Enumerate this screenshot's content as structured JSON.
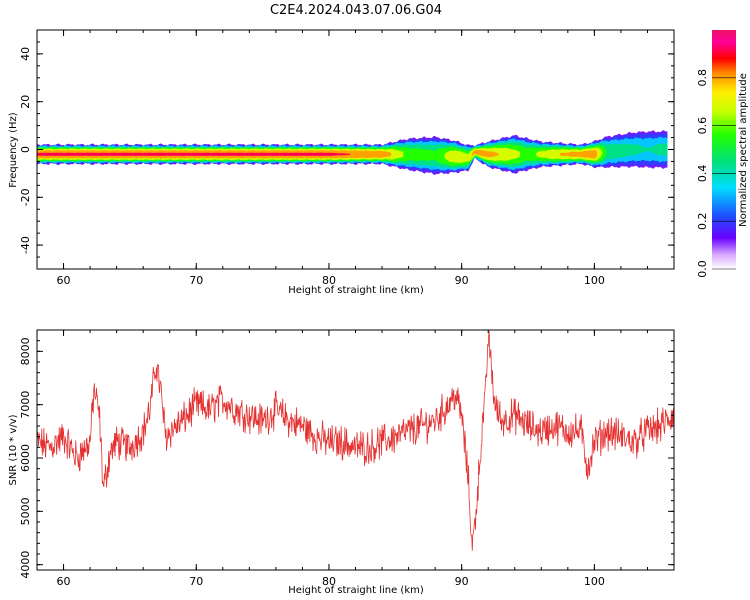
{
  "figure": {
    "title": "C2E4.2024.043.07.06.G04"
  },
  "chart_data": [
    {
      "type": "heatmap",
      "xlabel": "Height of straight line (km)",
      "ylabel": "Frequency (Hz)",
      "xlim": [
        58,
        106
      ],
      "ylim": [
        -50,
        50
      ],
      "x_ticks": [
        60,
        70,
        80,
        90,
        100
      ],
      "x_tick_labels": [
        "60",
        "70",
        "80",
        "90",
        "100"
      ],
      "y_ticks": [
        -40,
        -20,
        0,
        20,
        40
      ],
      "y_tick_labels": [
        "-40",
        "-20",
        "0",
        "20",
        "40"
      ],
      "colorbar": {
        "label": "Normalized spectral amplitude",
        "range": [
          0,
          1
        ],
        "ticks": [
          0.0,
          0.2,
          0.4,
          0.6,
          0.8
        ],
        "tick_labels": [
          "0.0",
          "0.2",
          "0.4",
          "0.6",
          "0.8"
        ],
        "colormap": "gist_ncar-like"
      },
      "band": {
        "center_frequency_hz": [
          [
            58,
            -2
          ],
          [
            70,
            -2
          ],
          [
            80,
            -2
          ],
          [
            85,
            -2
          ],
          [
            86,
            -2
          ],
          [
            88,
            -2.5
          ],
          [
            89.5,
            -3
          ],
          [
            90.5,
            -3.5
          ],
          [
            91,
            -1
          ],
          [
            92,
            -2
          ],
          [
            95,
            -2
          ],
          [
            100,
            -2
          ],
          [
            101,
            -1
          ],
          [
            103,
            0
          ],
          [
            105.5,
            0
          ]
        ],
        "half_width_hz": [
          [
            58,
            3
          ],
          [
            84,
            3
          ],
          [
            86,
            5
          ],
          [
            88,
            6
          ],
          [
            89.5,
            5
          ],
          [
            90.5,
            4
          ],
          [
            91,
            2
          ],
          [
            92,
            4
          ],
          [
            94,
            6
          ],
          [
            96,
            4
          ],
          [
            99,
            3
          ],
          [
            101,
            5
          ],
          [
            104,
            6
          ],
          [
            105.5,
            6
          ]
        ],
        "peak_amplitude": [
          [
            58,
            0.9
          ],
          [
            80,
            0.9
          ],
          [
            84,
            0.85
          ],
          [
            86,
            0.6
          ],
          [
            88,
            0.55
          ],
          [
            89.5,
            0.75
          ],
          [
            90.5,
            0.7
          ],
          [
            91,
            0.85
          ],
          [
            93,
            0.75
          ],
          [
            95,
            0.6
          ],
          [
            97,
            0.75
          ],
          [
            100,
            0.85
          ],
          [
            101,
            0.5
          ],
          [
            104,
            0.4
          ],
          [
            105.5,
            0.45
          ]
        ]
      }
    },
    {
      "type": "line",
      "xlabel": "Height of straight line (km)",
      "ylabel": "SNR (10 * v/v)",
      "xlim": [
        58,
        106
      ],
      "ylim": [
        3900,
        8400
      ],
      "x_ticks": [
        60,
        70,
        80,
        90,
        100
      ],
      "x_tick_labels": [
        "60",
        "70",
        "80",
        "90",
        "100"
      ],
      "y_ticks": [
        4000,
        5000,
        6000,
        7000,
        8000
      ],
      "y_tick_labels": [
        "4000",
        "5000",
        "6000",
        "7000",
        "8000"
      ],
      "series": [
        {
          "color": "#e53030",
          "x": [
            58,
            59,
            60,
            61,
            62,
            62.3,
            62.7,
            63,
            63.5,
            64,
            65,
            66,
            66.5,
            67,
            67.3,
            67.7,
            68,
            69,
            70,
            71,
            72,
            73,
            74,
            75,
            76,
            77,
            78,
            79,
            80,
            81,
            82,
            83,
            84,
            85,
            86,
            87,
            88,
            89,
            89.5,
            90,
            90.5,
            90.8,
            91,
            91.2,
            91.5,
            91.8,
            92,
            92.2,
            92.5,
            93,
            94,
            95,
            96,
            97,
            98,
            99,
            99.5,
            100,
            101,
            102,
            103,
            104,
            105,
            106
          ],
          "y": [
            6300,
            6200,
            6400,
            6000,
            6300,
            7300,
            6800,
            5400,
            6100,
            6300,
            6200,
            6500,
            6900,
            7800,
            7300,
            6400,
            6500,
            6700,
            7000,
            6900,
            7100,
            6900,
            6800,
            6700,
            6900,
            6700,
            6600,
            6400,
            6300,
            6300,
            6200,
            6200,
            6300,
            6400,
            6500,
            6600,
            6700,
            7000,
            7200,
            6800,
            5600,
            4300,
            4800,
            5400,
            6400,
            7200,
            8300,
            7800,
            7000,
            6700,
            6800,
            6600,
            6500,
            6600,
            6500,
            6500,
            5800,
            6300,
            6500,
            6400,
            6300,
            6500,
            6600,
            6800
          ]
        }
      ]
    }
  ]
}
